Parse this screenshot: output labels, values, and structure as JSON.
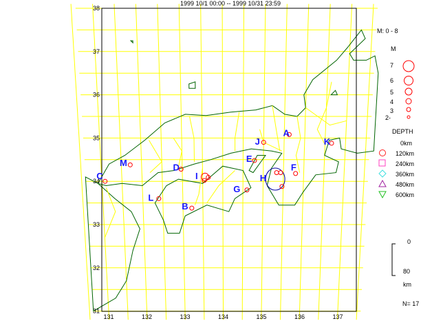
{
  "title": "1999 10/1 00:00 -- 1999 10/31 23:59",
  "axes": {
    "lon_ticks": [
      "131",
      "132",
      "133",
      "134",
      "135",
      "136",
      "137"
    ],
    "lat_ticks": [
      "38",
      "37",
      "36",
      "35",
      "34",
      "33",
      "32",
      "31"
    ]
  },
  "sites": [
    {
      "label": "A",
      "lon": 135.55,
      "lat": 35.05
    },
    {
      "label": "J",
      "lon": 134.85,
      "lat": 34.85
    },
    {
      "label": "K",
      "lon": 136.55,
      "lat": 34.85
    },
    {
      "label": "E",
      "lon": 134.65,
      "lat": 34.45
    },
    {
      "label": "F",
      "lon": 135.75,
      "lat": 34.25
    },
    {
      "label": "M",
      "lon": 131.55,
      "lat": 34.35
    },
    {
      "label": "D",
      "lon": 132.85,
      "lat": 34.25
    },
    {
      "label": "I",
      "lon": 133.35,
      "lat": 34.05
    },
    {
      "label": "H",
      "lon": 135.0,
      "lat": 34.0
    },
    {
      "label": "C",
      "lon": 130.95,
      "lat": 34.05
    },
    {
      "label": "G",
      "lon": 134.35,
      "lat": 33.75
    },
    {
      "label": "L",
      "lon": 132.2,
      "lat": 33.55
    },
    {
      "label": "B",
      "lon": 133.05,
      "lat": 33.35
    }
  ],
  "events": [
    {
      "lon": 135.62,
      "lat": 35.08,
      "m": 2
    },
    {
      "lon": 135.0,
      "lat": 34.9,
      "m": 2
    },
    {
      "lon": 136.66,
      "lat": 34.88,
      "m": 2
    },
    {
      "lon": 134.78,
      "lat": 34.48,
      "m": 2
    },
    {
      "lon": 135.8,
      "lat": 34.18,
      "m": 2
    },
    {
      "lon": 131.72,
      "lat": 34.38,
      "m": 2
    },
    {
      "lon": 132.97,
      "lat": 34.28,
      "m": 2
    },
    {
      "lon": 133.56,
      "lat": 34.1,
      "m": 3
    },
    {
      "lon": 133.54,
      "lat": 34.02,
      "m": 2
    },
    {
      "lon": 135.33,
      "lat": 34.2,
      "m": 2
    },
    {
      "lon": 135.43,
      "lat": 34.2,
      "m": 2
    },
    {
      "lon": 135.47,
      "lat": 33.88,
      "m": 2
    },
    {
      "lon": 131.08,
      "lat": 34.0,
      "m": 2
    },
    {
      "lon": 134.6,
      "lat": 33.8,
      "m": 2
    },
    {
      "lon": 132.4,
      "lat": 33.6,
      "m": 2
    },
    {
      "lon": 133.22,
      "lat": 33.38,
      "m": 2
    },
    {
      "lon": 133.64,
      "lat": 34.09,
      "m": 2
    }
  ],
  "legend": {
    "m_range": "M: 0 - 8",
    "m_title": "M",
    "m_items": [
      "7",
      "6",
      "5",
      "4",
      "3",
      "2-"
    ],
    "depth_title": "DEPTH",
    "depth_items": [
      "0km",
      "120km",
      "240km",
      "360km",
      "480km",
      "600km"
    ],
    "depth_colors": [
      "#ff2020",
      "#ff2020",
      "#ff40c0",
      "#40e0e0",
      "#a020a0",
      "#20c020"
    ],
    "scale_top": "0",
    "scale_bottom": "80",
    "scale_unit": "km",
    "count": "N= 17"
  },
  "colors": {
    "grid": "#ffff00",
    "coast": "#006400",
    "event": "#ff0000",
    "site": "#1a1aff"
  }
}
